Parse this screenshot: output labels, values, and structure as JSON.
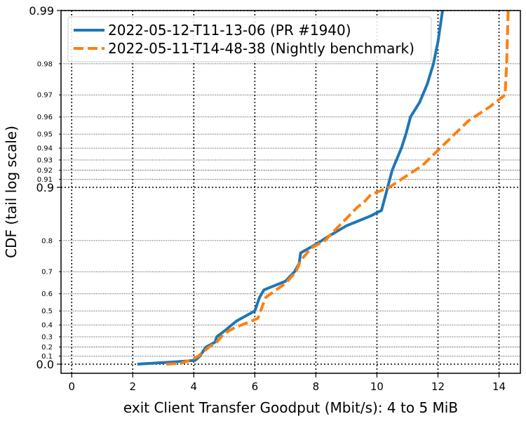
{
  "chart_data": {
    "type": "line",
    "title": "",
    "xlabel": "exit Client Transfer Goodput (Mbit/s): 4 to 5 MiB",
    "ylabel": "CDF (tail log scale)",
    "xlim": [
      -0.35,
      14.7
    ],
    "x_ticks": [
      0,
      2,
      4,
      6,
      8,
      10,
      12,
      14
    ],
    "x_tick_labels": [
      "0",
      "2",
      "4",
      "6",
      "8",
      "10",
      "12",
      "14"
    ],
    "y_scale": "tail-log",
    "ylim": [
      0.0,
      0.99
    ],
    "y_major_ticks": [
      0.0,
      0.9,
      0.99
    ],
    "y_major_labels": [
      "0.0",
      "0.9",
      "0.99"
    ],
    "y_minor_ticks": [
      0.1,
      0.2,
      0.3,
      0.4,
      0.5,
      0.6,
      0.7,
      0.8,
      0.91,
      0.92,
      0.93,
      0.94,
      0.95,
      0.96,
      0.97,
      0.98
    ],
    "y_minor_labels": [
      "0.1",
      "0.2",
      "0.3",
      "0.4",
      "0.5",
      "0.6",
      "0.7",
      "0.8",
      "0.91",
      "0.92",
      "0.93",
      "0.94",
      "0.95",
      "0.96",
      "0.97",
      "0.98"
    ],
    "grid": true,
    "legend_position": "top-left",
    "series": [
      {
        "name": "2022-05-12-T11-13-06 (PR #1940)",
        "color": "#1f77b4",
        "style": "solid",
        "points": [
          [
            2.15,
            0.0
          ],
          [
            3.0,
            0.02
          ],
          [
            3.8,
            0.04
          ],
          [
            4.05,
            0.05
          ],
          [
            4.2,
            0.1
          ],
          [
            4.4,
            0.2
          ],
          [
            4.7,
            0.25
          ],
          [
            4.75,
            0.3
          ],
          [
            5.0,
            0.35
          ],
          [
            5.4,
            0.43
          ],
          [
            6.0,
            0.5
          ],
          [
            6.15,
            0.58
          ],
          [
            6.3,
            0.62
          ],
          [
            7.0,
            0.66
          ],
          [
            7.3,
            0.7
          ],
          [
            7.45,
            0.73
          ],
          [
            7.5,
            0.765
          ],
          [
            8.0,
            0.79
          ],
          [
            8.4,
            0.81
          ],
          [
            9.0,
            0.835
          ],
          [
            9.8,
            0.855
          ],
          [
            10.15,
            0.865
          ],
          [
            10.5,
            0.92
          ],
          [
            10.8,
            0.94
          ],
          [
            10.95,
            0.95
          ],
          [
            11.1,
            0.96
          ],
          [
            11.4,
            0.967
          ],
          [
            11.65,
            0.974
          ],
          [
            11.85,
            0.98
          ],
          [
            12.0,
            0.985
          ],
          [
            12.15,
            0.99
          ]
        ]
      },
      {
        "name": "2022-05-11-T14-48-38 (Nightly benchmark)",
        "color": "#ff7f0e",
        "style": "dashed",
        "points": [
          [
            3.1,
            0.0
          ],
          [
            3.55,
            0.01
          ],
          [
            3.9,
            0.05
          ],
          [
            4.15,
            0.1
          ],
          [
            4.5,
            0.2
          ],
          [
            4.75,
            0.25
          ],
          [
            5.0,
            0.33
          ],
          [
            5.35,
            0.38
          ],
          [
            5.9,
            0.43
          ],
          [
            6.1,
            0.45
          ],
          [
            6.35,
            0.58
          ],
          [
            6.7,
            0.62
          ],
          [
            7.0,
            0.65
          ],
          [
            7.35,
            0.7
          ],
          [
            7.5,
            0.74
          ],
          [
            7.85,
            0.78
          ],
          [
            8.3,
            0.8
          ],
          [
            8.55,
            0.82
          ],
          [
            9.0,
            0.85
          ],
          [
            9.35,
            0.87
          ],
          [
            9.6,
            0.88
          ],
          [
            9.8,
            0.89
          ],
          [
            10.4,
            0.9
          ],
          [
            11.5,
            0.925
          ],
          [
            12.3,
            0.945
          ],
          [
            13.0,
            0.958
          ],
          [
            13.7,
            0.965
          ],
          [
            14.2,
            0.97
          ],
          [
            14.25,
            0.98
          ],
          [
            14.3,
            0.99
          ]
        ]
      }
    ]
  }
}
